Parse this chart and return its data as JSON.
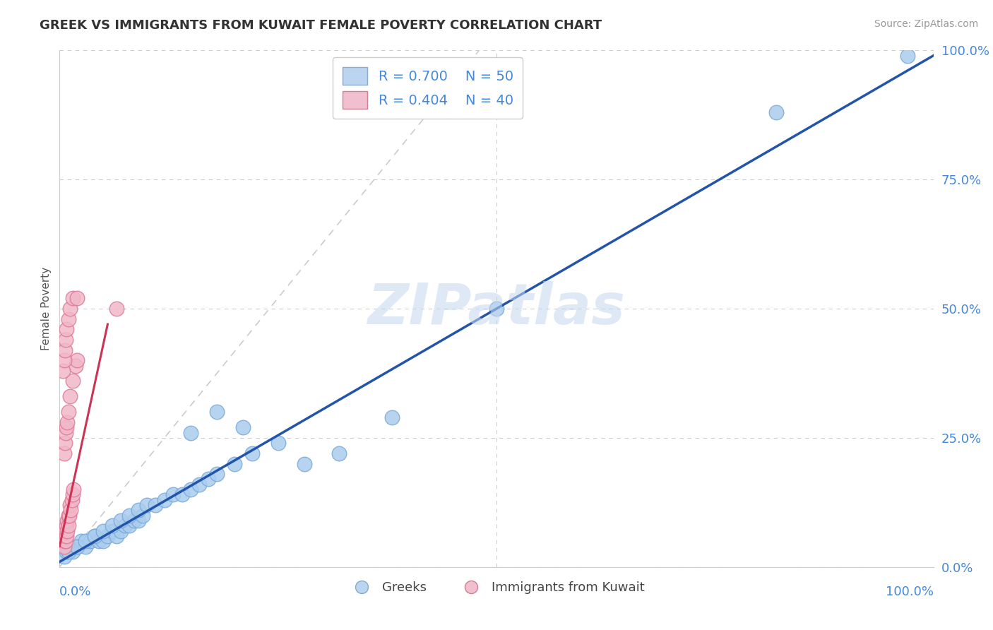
{
  "title": "GREEK VS IMMIGRANTS FROM KUWAIT FEMALE POVERTY CORRELATION CHART",
  "source": "Source: ZipAtlas.com",
  "ylabel": "Female Poverty",
  "watermark": "ZIPatlas",
  "legend_r1": "R = 0.700",
  "legend_n1": "N = 50",
  "legend_r2": "R = 0.404",
  "legend_n2": "N = 40",
  "legend_label1": "Greeks",
  "legend_label2": "Immigrants from Kuwait",
  "xlim": [
    0,
    1
  ],
  "ylim": [
    0,
    1
  ],
  "xtick_labels": [
    "0.0%",
    "100.0%"
  ],
  "ytick_labels": [
    "0.0%",
    "25.0%",
    "50.0%",
    "75.0%",
    "100.0%"
  ],
  "ytick_positions": [
    0.0,
    0.25,
    0.5,
    0.75,
    1.0
  ],
  "blue_scatter_color": "#aaccee",
  "blue_edge_color": "#7aaad8",
  "pink_scatter_color": "#f0b8c8",
  "pink_edge_color": "#e07898",
  "line_blue": "#2255aa",
  "line_pink": "#cc3355",
  "line_dashed_color": "#cccccc",
  "title_color": "#333333",
  "source_color": "#999999",
  "tick_label_color": "#4488dd",
  "blue_x": [
    0.005,
    0.008,
    0.01,
    0.015,
    0.02,
    0.025,
    0.03,
    0.035,
    0.04,
    0.045,
    0.05,
    0.055,
    0.06,
    0.065,
    0.07,
    0.075,
    0.08,
    0.085,
    0.09,
    0.095,
    0.01,
    0.02,
    0.03,
    0.04,
    0.05,
    0.06,
    0.07,
    0.08,
    0.09,
    0.1,
    0.11,
    0.12,
    0.13,
    0.14,
    0.15,
    0.16,
    0.17,
    0.18,
    0.2,
    0.22,
    0.15,
    0.18,
    0.21,
    0.25,
    0.28,
    0.32,
    0.38,
    0.5,
    0.82,
    0.97
  ],
  "blue_y": [
    0.02,
    0.03,
    0.04,
    0.03,
    0.04,
    0.05,
    0.04,
    0.05,
    0.06,
    0.05,
    0.05,
    0.06,
    0.07,
    0.06,
    0.07,
    0.08,
    0.08,
    0.09,
    0.09,
    0.1,
    0.03,
    0.04,
    0.05,
    0.06,
    0.07,
    0.08,
    0.09,
    0.1,
    0.11,
    0.12,
    0.12,
    0.13,
    0.14,
    0.14,
    0.15,
    0.16,
    0.17,
    0.18,
    0.2,
    0.22,
    0.26,
    0.3,
    0.27,
    0.24,
    0.2,
    0.22,
    0.29,
    0.5,
    0.88,
    0.99
  ],
  "pink_x": [
    0.003,
    0.004,
    0.005,
    0.005,
    0.006,
    0.006,
    0.007,
    0.007,
    0.008,
    0.008,
    0.009,
    0.009,
    0.01,
    0.01,
    0.011,
    0.012,
    0.013,
    0.014,
    0.015,
    0.016,
    0.005,
    0.006,
    0.007,
    0.008,
    0.009,
    0.01,
    0.012,
    0.015,
    0.018,
    0.02,
    0.004,
    0.005,
    0.006,
    0.007,
    0.008,
    0.01,
    0.012,
    0.015,
    0.02,
    0.065
  ],
  "pink_y": [
    0.05,
    0.06,
    0.04,
    0.07,
    0.05,
    0.06,
    0.05,
    0.07,
    0.06,
    0.08,
    0.07,
    0.09,
    0.08,
    0.1,
    0.1,
    0.12,
    0.11,
    0.13,
    0.14,
    0.15,
    0.22,
    0.24,
    0.26,
    0.27,
    0.28,
    0.3,
    0.33,
    0.36,
    0.39,
    0.4,
    0.38,
    0.4,
    0.42,
    0.44,
    0.46,
    0.48,
    0.5,
    0.52,
    0.52,
    0.5
  ]
}
